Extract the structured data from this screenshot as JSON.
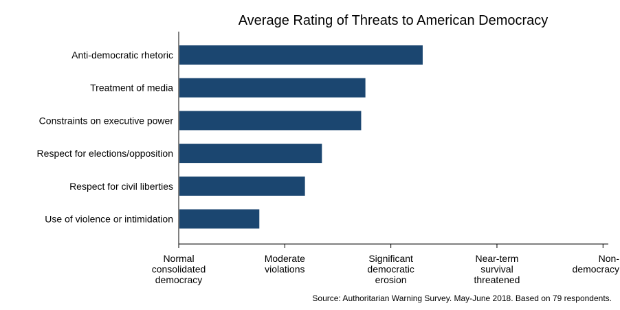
{
  "chart_data": {
    "type": "bar",
    "orientation": "horizontal",
    "title": "Average Rating of Threats to American Democracy",
    "xlabel": "",
    "ylabel": "",
    "categories": [
      "Anti-democratic rhetoric",
      "Treatment of media",
      "Constraints on executive power",
      "Respect for elections/opposition",
      "Respect for civil liberties",
      "Use of violence or intimidation"
    ],
    "values": [
      3.3,
      2.76,
      2.72,
      2.35,
      2.19,
      1.76
    ],
    "xlim": [
      1,
      5.05
    ],
    "x_ticks": [
      {
        "value": 1,
        "label": [
          "Normal",
          "consolidated",
          "democracy"
        ]
      },
      {
        "value": 2,
        "label": [
          "Moderate",
          "violations"
        ]
      },
      {
        "value": 3,
        "label": [
          "Significant",
          "democratic",
          "erosion"
        ]
      },
      {
        "value": 4,
        "label": [
          "Near-term",
          "survival",
          "threatened"
        ]
      },
      {
        "value": 5,
        "label": [
          "Non-",
          "democracy"
        ]
      }
    ],
    "bar_color": "#1b4670",
    "grid": false,
    "source": "Source: Authoritarian Warning Survey. May-June 2018. Based on 79 respondents."
  }
}
